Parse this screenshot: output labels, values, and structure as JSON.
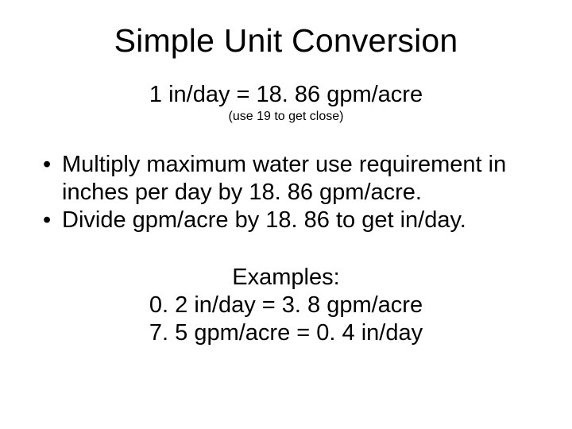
{
  "title": "Simple Unit Conversion",
  "conversion_line": "1 in/day = 18. 86 gpm/acre",
  "note": "(use 19 to get close)",
  "bullets": [
    "Multiply maximum water use requirement in inches per day by 18. 86 gpm/acre.",
    "Divide gpm/acre by 18. 86 to get in/day."
  ],
  "examples": {
    "label": "Examples:",
    "lines": [
      "0. 2 in/day = 3. 8 gpm/acre",
      "7. 5 gpm/acre = 0. 4 in/day"
    ]
  },
  "style": {
    "background_color": "#ffffff",
    "text_color": "#000000",
    "title_fontsize": 41,
    "body_fontsize": 29,
    "note_fontsize": 16,
    "font_family": "Arial"
  }
}
